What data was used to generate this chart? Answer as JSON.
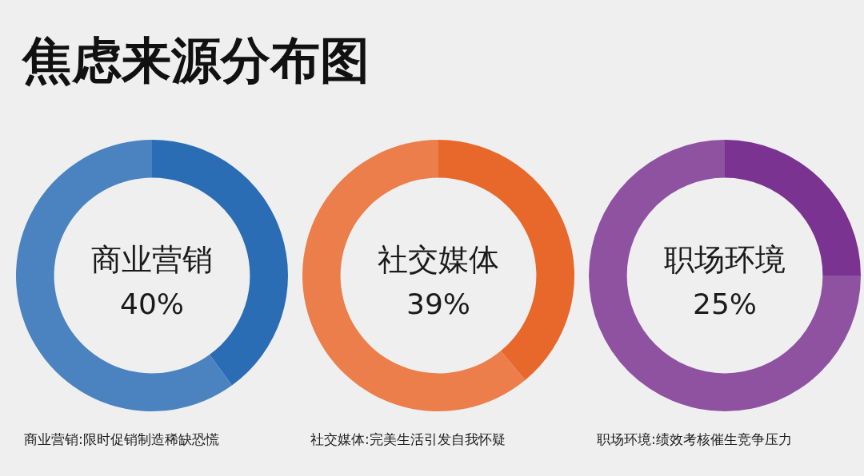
{
  "chart_data": {
    "type": "other",
    "title": "焦虑来源分布图",
    "categories": [
      "商业营销",
      "社交媒体",
      "职场环境"
    ],
    "values": [
      40,
      39,
      25
    ],
    "value_labels": [
      "40%",
      "39%",
      "25%"
    ],
    "colors": [
      "#2a6db5",
      "#e8672a",
      "#7a3390"
    ],
    "annotations": [
      "商业营销:限时促销制造稀缺恐慌",
      "社交媒体:完美生活引发自我怀疑",
      "职场环境:绩效考核催生竞争压力"
    ],
    "legend": false
  }
}
